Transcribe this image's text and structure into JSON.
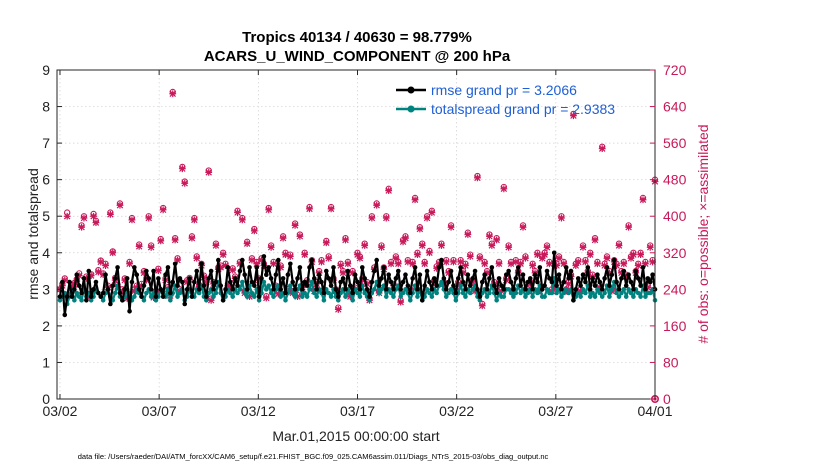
{
  "chart_data": {
    "type": "line",
    "title": "Tropics 40134 / 40630 = 98.779%",
    "subtitle": "ACARS_U_WIND_COMPONENT @ 200 hPa",
    "xlabel": "Mar.01,2015 00:00:00 start",
    "ylabel": "rmse and totalspread",
    "ylabel_right": "# of obs: o=possible; ×=assimilated",
    "footnote": "data file: /Users/raeder/DAI/ATM_forcXX/CAM6_setup/f.e21.FHIST_BGC.f09_025.CAM6assim.011/Diags_NTrS_2015-03/obs_diag_output.nc",
    "x_ticks": [
      "03/02",
      "03/07",
      "03/12",
      "03/17",
      "03/22",
      "03/27",
      "04/01"
    ],
    "x_tick_days": [
      1,
      6,
      11,
      16,
      21,
      26,
      31
    ],
    "xlim": [
      0.85,
      31.0
    ],
    "ylim": [
      0,
      9
    ],
    "y_ticks": [
      "0",
      "1",
      "2",
      "3",
      "4",
      "5",
      "6",
      "7",
      "8",
      "9"
    ],
    "ylim_right": [
      0,
      720
    ],
    "y_ticks_right": [
      "0",
      "80",
      "160",
      "240",
      "320",
      "400",
      "480",
      "560",
      "640",
      "720"
    ],
    "legend_position": "top-right",
    "colors": {
      "rmse": "#000000",
      "spread": "#00827f",
      "obs": "#c8195a",
      "legend_text": "#1f5fd6"
    },
    "series": [
      {
        "name": "rmse grand pr = 3.2066",
        "key": "rmse",
        "values": [
          2.8,
          3.2,
          2.3,
          2.8,
          3.2,
          2.8,
          3.0,
          3.4,
          3.1,
          2.9,
          3.3,
          2.7,
          3.5,
          2.8,
          3.0,
          3.2,
          2.9,
          2.8,
          2.9,
          3.4,
          3.0,
          2.6,
          3.1,
          3.3,
          3.6,
          2.9,
          2.7,
          3.0,
          3.3,
          2.4,
          3.2,
          3.6,
          3.4,
          3.0,
          2.8,
          3.1,
          3.5,
          3.3,
          3.0,
          3.5,
          2.8,
          3.3,
          3.0,
          2.8,
          3.4,
          3.6,
          2.9,
          3.2,
          3.7,
          3.1,
          3.3,
          3.2,
          2.6,
          3.0,
          3.3,
          2.8,
          3.2,
          3.5,
          3.0,
          3.7,
          3.1,
          2.8,
          3.3,
          3.5,
          3.0,
          3.2,
          3.8,
          3.1,
          2.7,
          3.0,
          3.6,
          3.2,
          3.0,
          3.3,
          3.1,
          3.5,
          3.8,
          3.4,
          3.0,
          3.6,
          3.2,
          3.1,
          3.6,
          2.8,
          3.3,
          3.9,
          3.4,
          3.6,
          3.3,
          3.0,
          3.4,
          3.8,
          3.0,
          3.3,
          2.9,
          3.4,
          3.7,
          3.2,
          3.0,
          3.3,
          3.6,
          3.0,
          3.2,
          3.1,
          3.6,
          3.8,
          3.3,
          3.0,
          3.4,
          3.2,
          2.9,
          3.5,
          3.3,
          3.1,
          3.6,
          3.0,
          2.8,
          3.2,
          3.3,
          3.0,
          3.5,
          3.1,
          2.9,
          3.4,
          3.2,
          3.0,
          3.6,
          3.3,
          3.0,
          2.8,
          3.2,
          3.5,
          3.8,
          3.1,
          3.3,
          3.6,
          3.0,
          3.4,
          3.2,
          3.0,
          3.3,
          3.5,
          3.0,
          3.2,
          3.4,
          3.1,
          2.9,
          3.3,
          3.6,
          3.0,
          3.4,
          2.7,
          3.1,
          3.5,
          3.2,
          3.0,
          3.3,
          3.1,
          3.6,
          3.8,
          3.3,
          3.0,
          3.2,
          3.5,
          3.1,
          2.9,
          3.3,
          3.6,
          3.2,
          3.0,
          3.4,
          3.1,
          3.3,
          3.5,
          3.0,
          2.8,
          3.2,
          3.4,
          3.0,
          3.3,
          3.6,
          3.1,
          2.9,
          3.3,
          3.1,
          3.0,
          3.4,
          3.5,
          3.2,
          3.0,
          3.3,
          3.6,
          3.1,
          3.4,
          3.0,
          3.2,
          3.3,
          3.0,
          3.4,
          3.2,
          3.6,
          3.0,
          3.1,
          3.5,
          3.3,
          3.2,
          4.0,
          3.1,
          3.4,
          3.0,
          3.2,
          3.6,
          3.3,
          3.5,
          2.7,
          3.0,
          3.3,
          3.1,
          3.4,
          3.2,
          3.6,
          3.0,
          3.3,
          3.1,
          3.4,
          3.2,
          3.0,
          3.3,
          3.6,
          3.1,
          3.4,
          3.8,
          3.2,
          3.0,
          3.3,
          3.5,
          3.1,
          3.4,
          3.2,
          3.0,
          3.5,
          3.3,
          3.1,
          3.6,
          3.0,
          3.3,
          3.2,
          3.4,
          3.0
        ]
      },
      {
        "name": "totalspread grand pr = 2.9383",
        "key": "spread",
        "values": [
          2.7,
          2.8,
          2.9,
          2.6,
          2.8,
          3.0,
          2.7,
          2.9,
          2.8,
          2.7,
          3.0,
          2.8,
          2.9,
          2.7,
          2.8,
          3.0,
          2.9,
          2.8,
          2.7,
          2.9,
          3.0,
          2.8,
          2.7,
          2.9,
          3.1,
          2.8,
          2.7,
          2.8,
          3.0,
          2.9,
          2.7,
          2.8,
          3.0,
          2.9,
          2.8,
          2.7,
          2.9,
          3.0,
          2.8,
          2.9,
          2.7,
          2.8,
          3.0,
          2.9,
          2.8,
          3.0,
          2.7,
          2.9,
          3.1,
          2.8,
          2.9,
          3.0,
          2.7,
          2.8,
          3.0,
          2.9,
          2.8,
          3.0,
          2.9,
          3.1,
          2.8,
          2.7,
          2.9,
          3.0,
          2.8,
          2.9,
          3.2,
          2.9,
          2.7,
          2.8,
          3.0,
          2.9,
          2.8,
          3.0,
          2.9,
          3.0,
          3.2,
          2.9,
          2.8,
          3.1,
          2.9,
          2.8,
          3.0,
          2.7,
          2.9,
          3.2,
          3.0,
          3.1,
          2.9,
          2.8,
          3.0,
          3.1,
          2.8,
          2.9,
          2.7,
          2.9,
          3.1,
          2.9,
          2.8,
          3.0,
          3.1,
          2.8,
          2.9,
          2.8,
          3.0,
          3.2,
          2.9,
          2.8,
          3.0,
          2.9,
          2.7,
          3.0,
          2.9,
          2.8,
          3.0,
          2.8,
          2.7,
          2.9,
          3.0,
          2.8,
          3.0,
          2.9,
          2.7,
          3.0,
          2.9,
          2.8,
          3.1,
          2.9,
          2.8,
          2.7,
          2.9,
          3.0,
          3.2,
          2.9,
          3.0,
          3.1,
          2.8,
          3.0,
          2.9,
          2.8,
          3.0,
          3.1,
          2.8,
          2.9,
          3.0,
          2.9,
          2.7,
          2.9,
          3.1,
          2.8,
          3.0,
          2.7,
          2.8,
          3.0,
          2.9,
          2.8,
          3.0,
          2.9,
          3.1,
          3.2,
          3.0,
          2.8,
          2.9,
          3.0,
          2.9,
          2.7,
          2.9,
          3.1,
          2.9,
          2.8,
          3.0,
          2.9,
          3.0,
          3.1,
          2.8,
          2.7,
          2.9,
          3.0,
          2.8,
          2.9,
          3.1,
          2.9,
          2.7,
          2.9,
          2.8,
          2.8,
          3.0,
          3.0,
          2.9,
          2.8,
          2.9,
          3.1,
          2.9,
          3.0,
          2.8,
          2.9,
          3.0,
          2.8,
          3.0,
          2.9,
          3.1,
          2.8,
          2.8,
          3.0,
          2.9,
          2.9,
          3.3,
          2.9,
          3.0,
          2.8,
          2.9,
          3.0,
          2.9,
          3.0,
          2.7,
          2.8,
          2.9,
          2.8,
          3.0,
          2.9,
          3.1,
          2.8,
          2.9,
          2.8,
          3.0,
          2.9,
          2.8,
          2.9,
          3.1,
          2.8,
          3.0,
          3.2,
          2.9,
          2.8,
          2.9,
          3.0,
          2.8,
          3.0,
          2.9,
          2.8,
          3.0,
          2.9,
          2.8,
          3.1,
          2.8,
          2.9,
          2.9,
          3.0,
          2.7
        ]
      },
      {
        "name": "obs possible",
        "key": "obs_possible",
        "values": [
          240,
          252,
          264,
          408,
          232,
          250,
          254,
          262,
          275,
          380,
          400,
          268,
          230,
          273,
          405,
          390,
          282,
          303,
          275,
          296,
          248,
          408,
          323,
          265,
          250,
          428,
          240,
          264,
          224,
          300,
          396,
          240,
          248,
          338,
          252,
          280,
          264,
          400,
          336,
          226,
          236,
          285,
          350,
          418,
          264,
          245,
          230,
          672,
          352,
          308,
          240,
          508,
          476,
          260,
          265,
          356,
          396,
          312,
          250,
          296,
          270,
          260,
          500,
          220,
          256,
          340,
          288,
          292,
          320,
          296,
          252,
          246,
          286,
          268,
          412,
          300,
          396,
          236,
          344,
          228,
          308,
          372,
          300,
          264,
          308,
          296,
          225,
          418,
          336,
          300,
          248,
          234,
          292,
          356,
          320,
          240,
          316,
          236,
          384,
          228,
          360,
          248,
          320,
          260,
          420,
          304,
          240,
          256,
          280,
          304,
          240,
          346,
          312,
          420,
          264,
          240,
          200,
          296,
          280,
          352,
          300,
          228,
          280,
          244,
          320,
          312,
          264,
          340,
          256,
          220,
          400,
          288,
          428,
          236,
          336,
          288,
          400,
          460,
          300,
          252,
          312,
          300,
          216,
          348,
          356,
          304,
          240,
          300,
          440,
          320,
          376,
          340,
          300,
          400,
          324,
          412,
          260,
          290,
          300,
          340,
          256,
          304,
          280,
          380,
          304,
          240,
          256,
          304,
          280,
          296,
          364,
          316,
          260,
          240,
          488,
          312,
          208,
          300,
          280,
          360,
          340,
          256,
          352,
          300,
          240,
          464,
          264,
          336,
          300,
          240,
          304,
          280,
          300,
          380,
          312,
          240,
          256,
          296,
          280,
          320,
          240,
          312,
          320,
          336,
          300,
          240,
          248,
          296,
          312,
          400,
          300,
          240,
          256,
          272,
          624,
          296,
          304,
          240,
          336,
          304,
          280,
          320,
          272,
          352,
          300,
          248,
          552,
          296,
          312,
          280,
          240,
          304,
          296,
          340,
          280,
          300,
          272,
          380,
          312,
          320,
          280,
          296,
          320,
          440,
          300,
          248,
          336,
          304,
          480
        ]
      },
      {
        "name": "obs assimilated",
        "key": "obs_assimilated",
        "values": [
          240,
          248,
          260,
          400,
          228,
          246,
          250,
          258,
          270,
          376,
          396,
          264,
          226,
          270,
          400,
          386,
          278,
          300,
          272,
          292,
          244,
          404,
          320,
          260,
          246,
          424,
          236,
          260,
          220,
          296,
          392,
          236,
          244,
          334,
          248,
          276,
          260,
          396,
          332,
          222,
          232,
          281,
          346,
          414,
          260,
          241,
          226,
          668,
          348,
          304,
          236,
          504,
          472,
          256,
          261,
          352,
          392,
          308,
          246,
          292,
          266,
          256,
          496,
          216,
          252,
          336,
          284,
          288,
          316,
          292,
          248,
          242,
          282,
          264,
          408,
          296,
          392,
          232,
          340,
          224,
          304,
          368,
          296,
          260,
          304,
          292,
          221,
          414,
          332,
          296,
          244,
          230,
          288,
          352,
          316,
          236,
          312,
          232,
          380,
          224,
          356,
          244,
          316,
          256,
          416,
          300,
          236,
          252,
          276,
          300,
          236,
          342,
          308,
          416,
          260,
          236,
          196,
          292,
          276,
          348,
          296,
          224,
          276,
          240,
          316,
          308,
          260,
          336,
          252,
          216,
          396,
          284,
          424,
          232,
          332,
          284,
          396,
          456,
          296,
          248,
          308,
          296,
          212,
          344,
          352,
          300,
          236,
          296,
          436,
          316,
          372,
          336,
          296,
          396,
          320,
          408,
          256,
          286,
          296,
          336,
          252,
          300,
          276,
          376,
          300,
          236,
          252,
          300,
          276,
          292,
          360,
          312,
          256,
          236,
          484,
          308,
          204,
          296,
          276,
          356,
          336,
          252,
          348,
          296,
          236,
          460,
          260,
          332,
          296,
          236,
          300,
          276,
          296,
          376,
          308,
          236,
          252,
          292,
          276,
          316,
          236,
          308,
          316,
          332,
          296,
          236,
          244,
          292,
          308,
          396,
          296,
          236,
          252,
          268,
          620,
          292,
          300,
          236,
          332,
          300,
          276,
          316,
          268,
          348,
          296,
          244,
          548,
          292,
          308,
          276,
          236,
          300,
          292,
          336,
          276,
          296,
          268,
          376,
          308,
          316,
          276,
          292,
          316,
          436,
          296,
          244,
          332,
          300,
          476
        ]
      }
    ]
  }
}
